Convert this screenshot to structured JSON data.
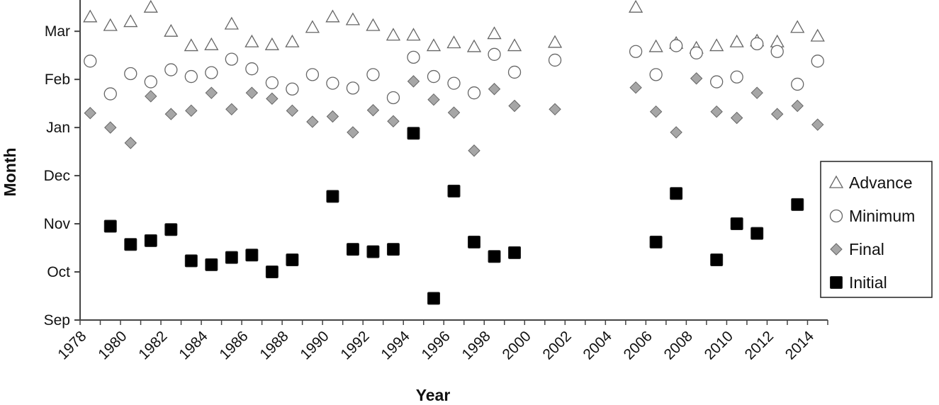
{
  "chart_data": {
    "type": "scatter",
    "xlabel": "Year",
    "ylabel": "Month",
    "x_ticks": [
      "1978",
      "1980",
      "1982",
      "1984",
      "1986",
      "1988",
      "1990",
      "1992",
      "1994",
      "1996",
      "1998",
      "2000",
      "2002",
      "2004",
      "2006",
      "2008",
      "2010",
      "2012",
      "2014"
    ],
    "y_ticks": [
      "Sep",
      "Oct",
      "Nov",
      "Dec",
      "Jan",
      "Feb",
      "Mar"
    ],
    "x_range": [
      1978,
      2015
    ],
    "y_range": [
      0,
      6.65
    ],
    "legend_position": "right",
    "grid": false,
    "series": [
      {
        "name": "Advance",
        "marker": "triangle",
        "color": "#ffffff",
        "points": [
          [
            1978.5,
            6.3
          ],
          [
            1979.5,
            6.12
          ],
          [
            1980.5,
            6.2
          ],
          [
            1981.5,
            6.5
          ],
          [
            1982.5,
            6.0
          ],
          [
            1983.5,
            5.7
          ],
          [
            1984.5,
            5.72
          ],
          [
            1985.5,
            6.15
          ],
          [
            1986.5,
            5.78
          ],
          [
            1987.5,
            5.72
          ],
          [
            1988.5,
            5.78
          ],
          [
            1989.5,
            6.08
          ],
          [
            1990.5,
            6.3
          ],
          [
            1991.5,
            6.24
          ],
          [
            1992.5,
            6.12
          ],
          [
            1993.5,
            5.92
          ],
          [
            1994.5,
            5.92
          ],
          [
            1995.5,
            5.7
          ],
          [
            1996.5,
            5.76
          ],
          [
            1997.5,
            5.68
          ],
          [
            1998.5,
            5.95
          ],
          [
            1999.5,
            5.7
          ],
          [
            2001.5,
            5.77
          ],
          [
            2005.5,
            6.5
          ],
          [
            2006.5,
            5.68
          ],
          [
            2007.5,
            5.75
          ],
          [
            2008.5,
            5.65
          ],
          [
            2009.5,
            5.7
          ],
          [
            2010.5,
            5.78
          ],
          [
            2011.5,
            5.8
          ],
          [
            2012.5,
            5.78
          ],
          [
            2013.5,
            6.08
          ],
          [
            2014.5,
            5.9
          ]
        ]
      },
      {
        "name": "Minimum",
        "marker": "circle",
        "color": "#ffffff",
        "points": [
          [
            1978.5,
            5.38
          ],
          [
            1979.5,
            4.7
          ],
          [
            1980.5,
            5.12
          ],
          [
            1981.5,
            4.95
          ],
          [
            1982.5,
            5.2
          ],
          [
            1983.5,
            5.06
          ],
          [
            1984.5,
            5.14
          ],
          [
            1985.5,
            5.42
          ],
          [
            1986.5,
            5.22
          ],
          [
            1987.5,
            4.93
          ],
          [
            1988.5,
            4.8
          ],
          [
            1989.5,
            5.1
          ],
          [
            1990.5,
            4.92
          ],
          [
            1991.5,
            4.82
          ],
          [
            1992.5,
            5.1
          ],
          [
            1993.5,
            4.62
          ],
          [
            1994.5,
            5.46
          ],
          [
            1995.5,
            5.06
          ],
          [
            1996.5,
            4.92
          ],
          [
            1997.5,
            4.72
          ],
          [
            1998.5,
            5.52
          ],
          [
            1999.5,
            5.15
          ],
          [
            2001.5,
            5.4
          ],
          [
            2005.5,
            5.58
          ],
          [
            2006.5,
            5.1
          ],
          [
            2007.5,
            5.7
          ],
          [
            2008.5,
            5.55
          ],
          [
            2009.5,
            4.95
          ],
          [
            2010.5,
            5.05
          ],
          [
            2011.5,
            5.74
          ],
          [
            2012.5,
            5.58
          ],
          [
            2013.5,
            4.9
          ],
          [
            2014.5,
            5.38
          ]
        ]
      },
      {
        "name": "Final",
        "marker": "diamond",
        "color": "#a6a6a6",
        "points": [
          [
            1978.5,
            4.3
          ],
          [
            1979.5,
            4.0
          ],
          [
            1980.5,
            3.68
          ],
          [
            1981.5,
            4.65
          ],
          [
            1982.5,
            4.28
          ],
          [
            1983.5,
            4.35
          ],
          [
            1984.5,
            4.72
          ],
          [
            1985.5,
            4.38
          ],
          [
            1986.5,
            4.72
          ],
          [
            1987.5,
            4.6
          ],
          [
            1988.5,
            4.35
          ],
          [
            1989.5,
            4.12
          ],
          [
            1990.5,
            4.23
          ],
          [
            1991.5,
            3.9
          ],
          [
            1992.5,
            4.36
          ],
          [
            1993.5,
            4.13
          ],
          [
            1994.5,
            4.96
          ],
          [
            1995.5,
            4.58
          ],
          [
            1996.5,
            4.31
          ],
          [
            1997.5,
            3.52
          ],
          [
            1998.5,
            4.8
          ],
          [
            1999.5,
            4.45
          ],
          [
            2001.5,
            4.38
          ],
          [
            2005.5,
            4.83
          ],
          [
            2006.5,
            4.33
          ],
          [
            2007.5,
            3.9
          ],
          [
            2008.5,
            5.02
          ],
          [
            2009.5,
            4.33
          ],
          [
            2010.5,
            4.2
          ],
          [
            2011.5,
            4.72
          ],
          [
            2012.5,
            4.28
          ],
          [
            2013.5,
            4.45
          ],
          [
            2014.5,
            4.06
          ]
        ]
      },
      {
        "name": "Initial",
        "marker": "square",
        "color": "#000000",
        "points": [
          [
            1979.5,
            1.95
          ],
          [
            1980.5,
            1.57
          ],
          [
            1981.5,
            1.65
          ],
          [
            1982.5,
            1.88
          ],
          [
            1983.5,
            1.23
          ],
          [
            1984.5,
            1.15
          ],
          [
            1985.5,
            1.3
          ],
          [
            1986.5,
            1.35
          ],
          [
            1987.5,
            1.0
          ],
          [
            1988.5,
            1.25
          ],
          [
            1990.5,
            2.57
          ],
          [
            1991.5,
            1.47
          ],
          [
            1992.5,
            1.42
          ],
          [
            1993.5,
            1.47
          ],
          [
            1994.5,
            3.88
          ],
          [
            1995.5,
            0.45
          ],
          [
            1996.5,
            2.68
          ],
          [
            1997.5,
            1.62
          ],
          [
            1998.5,
            1.32
          ],
          [
            1999.5,
            1.4
          ],
          [
            2006.5,
            1.62
          ],
          [
            2007.5,
            2.63
          ],
          [
            2009.5,
            1.25
          ],
          [
            2010.5,
            2.0
          ],
          [
            2011.5,
            1.8
          ],
          [
            2013.5,
            2.4
          ]
        ]
      }
    ]
  }
}
